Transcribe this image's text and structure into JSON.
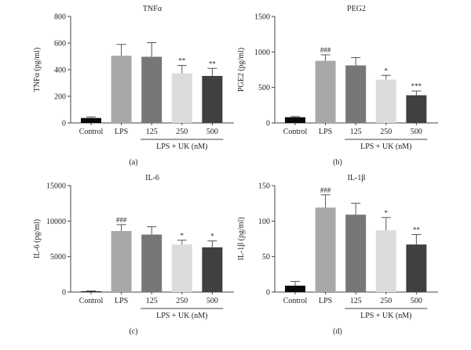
{
  "chart_data": [
    {
      "type": "bar",
      "panel_label": "(a)",
      "title": "TNFα",
      "ylabel": "TNFα (pg/ml)",
      "group_label": "LPS + UK (nM)",
      "categories": [
        "Control",
        "LPS",
        "125",
        "250",
        "500"
      ],
      "values": [
        37,
        505,
        497,
        373,
        353
      ],
      "error_upper": [
        45,
        590,
        603,
        432,
        410
      ],
      "annotations": [
        "",
        "",
        "",
        "**",
        "**"
      ],
      "ylim": [
        0,
        800
      ],
      "yticks": [
        0,
        200,
        400,
        600,
        800
      ],
      "grid": false
    },
    {
      "type": "bar",
      "panel_label": "(b)",
      "title": "PEG2",
      "ylabel": "PGE2 (pg/ml)",
      "group_label": "LPS + UK (nM)",
      "categories": [
        "Control",
        "LPS",
        "125",
        "250",
        "500"
      ],
      "values": [
        80,
        875,
        810,
        610,
        390
      ],
      "error_upper": [
        90,
        960,
        920,
        670,
        450
      ],
      "annotations": [
        "",
        "###",
        "",
        "*",
        "***"
      ],
      "ylim": [
        0,
        1500
      ],
      "yticks": [
        0,
        500,
        1000,
        1500
      ],
      "grid": false
    },
    {
      "type": "bar",
      "panel_label": "(c)",
      "title": "IL-6",
      "ylabel": "IL-6 (pg/ml)",
      "group_label": "LPS + UK (nM)",
      "categories": [
        "Control",
        "LPS",
        "125",
        "250",
        "500"
      ],
      "values": [
        100,
        8600,
        8100,
        6700,
        6300
      ],
      "error_upper": [
        150,
        9500,
        9200,
        7300,
        7200
      ],
      "annotations": [
        "",
        "###",
        "",
        "*",
        "*"
      ],
      "ylim": [
        0,
        15000
      ],
      "yticks": [
        0,
        5000,
        10000,
        15000
      ],
      "grid": false
    },
    {
      "type": "bar",
      "panel_label": "(d)",
      "title": "IL-1β",
      "ylabel": "IL-1β (pg/ml)",
      "group_label": "LPS + UK (nM)",
      "categories": [
        "Control",
        "LPS",
        "125",
        "250",
        "500"
      ],
      "values": [
        9,
        119,
        109,
        87,
        67
      ],
      "error_upper": [
        15,
        137,
        125,
        105,
        81
      ],
      "annotations": [
        "",
        "###",
        "",
        "*",
        "**"
      ],
      "ylim": [
        0,
        150
      ],
      "yticks": [
        0,
        50,
        100,
        150
      ],
      "grid": false
    }
  ],
  "colors": {
    "Control": "#0a0a0a",
    "LPS": "#a8a8a8",
    "125": "#777777",
    "250": "#dcdcdc",
    "500": "#404040"
  }
}
